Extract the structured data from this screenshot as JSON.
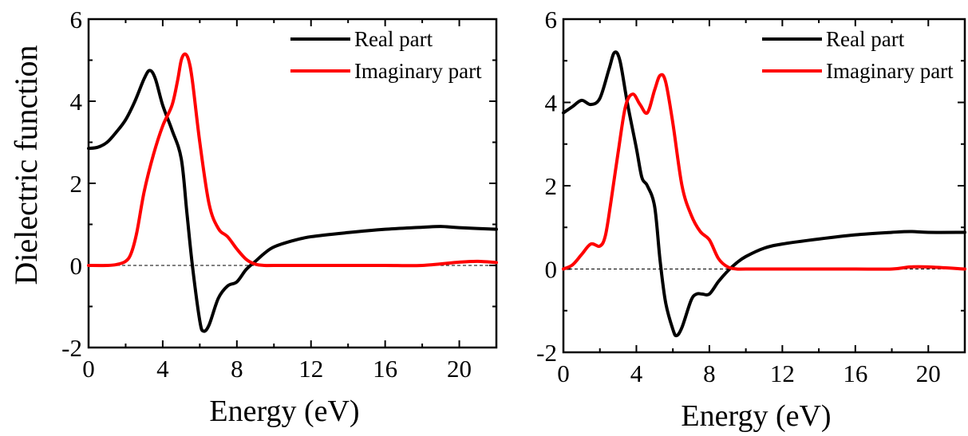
{
  "figure": {
    "ylabel": "Dielectric function"
  },
  "chart_data": [
    {
      "type": "line",
      "xlabel": "Energy (eV)",
      "ylabel": "Dielectric function",
      "xlim": [
        0,
        22
      ],
      "ylim": [
        -2,
        6
      ],
      "x_ticks": [
        0,
        4,
        8,
        12,
        16,
        20
      ],
      "y_ticks": [
        -2,
        0,
        2,
        4,
        6
      ],
      "legend_position": "top-right",
      "grid": false,
      "zero_line": true,
      "series": [
        {
          "name": "Real part",
          "color": "#000000",
          "x": [
            0,
            0.5,
            1,
            1.5,
            2,
            2.5,
            3,
            3.3,
            3.6,
            4,
            4.5,
            5,
            5.3,
            5.6,
            6,
            6.2,
            6.5,
            7,
            7.5,
            8,
            8.5,
            9,
            9.5,
            10,
            11,
            12,
            14,
            16,
            18,
            19,
            20,
            22
          ],
          "y": [
            2.85,
            2.88,
            3.0,
            3.25,
            3.55,
            4.0,
            4.55,
            4.75,
            4.55,
            3.9,
            3.3,
            2.6,
            1.3,
            0.0,
            -1.35,
            -1.6,
            -1.45,
            -0.8,
            -0.5,
            -0.4,
            -0.1,
            0.1,
            0.3,
            0.45,
            0.6,
            0.7,
            0.8,
            0.88,
            0.93,
            0.95,
            0.92,
            0.88
          ]
        },
        {
          "name": "Imaginary part",
          "color": "#ff0000",
          "x": [
            0,
            1,
            1.5,
            2,
            2.3,
            2.6,
            3,
            3.5,
            4,
            4.5,
            4.8,
            5.0,
            5.2,
            5.4,
            5.6,
            6,
            6.5,
            7,
            7.5,
            8,
            8.5,
            9,
            9.5,
            10,
            12,
            14,
            16,
            18,
            20,
            21,
            22
          ],
          "y": [
            0,
            0,
            0.02,
            0.1,
            0.3,
            0.8,
            1.8,
            2.7,
            3.4,
            3.9,
            4.5,
            5.0,
            5.15,
            5.0,
            4.5,
            3.0,
            1.5,
            0.9,
            0.7,
            0.4,
            0.15,
            0.03,
            0.0,
            0.0,
            0.0,
            0.0,
            0.0,
            0.0,
            0.08,
            0.1,
            0.07
          ]
        }
      ]
    },
    {
      "type": "line",
      "xlabel": "Energy (eV)",
      "ylabel": "",
      "xlim": [
        0,
        22
      ],
      "ylim": [
        -2,
        6
      ],
      "x_ticks": [
        0,
        4,
        8,
        12,
        16,
        20
      ],
      "y_ticks": [
        -2,
        0,
        2,
        4,
        6
      ],
      "legend_position": "top-right",
      "grid": false,
      "zero_line": true,
      "series": [
        {
          "name": "Real part",
          "color": "#000000",
          "x": [
            0,
            0.5,
            1,
            1.5,
            2,
            2.5,
            2.8,
            3.1,
            3.5,
            4,
            4.3,
            4.6,
            5,
            5.3,
            5.6,
            6,
            6.2,
            6.5,
            7,
            7.3,
            7.6,
            8,
            8.5,
            9,
            9.5,
            10,
            11,
            12,
            14,
            16,
            18,
            19,
            20,
            22
          ],
          "y": [
            3.75,
            3.9,
            4.05,
            3.95,
            4.1,
            4.8,
            5.2,
            5.0,
            4.0,
            2.9,
            2.2,
            2.0,
            1.5,
            0.2,
            -0.8,
            -1.45,
            -1.6,
            -1.4,
            -0.75,
            -0.6,
            -0.6,
            -0.6,
            -0.3,
            -0.05,
            0.15,
            0.3,
            0.5,
            0.6,
            0.72,
            0.82,
            0.88,
            0.9,
            0.88,
            0.88
          ]
        },
        {
          "name": "Imaginary part",
          "color": "#ff0000",
          "x": [
            0,
            0.5,
            1,
            1.5,
            2,
            2.3,
            2.6,
            3,
            3.4,
            3.8,
            4.2,
            4.6,
            5,
            5.3,
            5.6,
            6,
            6.5,
            7,
            7.5,
            8,
            8.5,
            9,
            9.5,
            10,
            12,
            14,
            16,
            18,
            19,
            20,
            22
          ],
          "y": [
            0.0,
            0.1,
            0.35,
            0.6,
            0.55,
            0.8,
            1.6,
            2.8,
            3.9,
            4.2,
            3.95,
            3.75,
            4.3,
            4.65,
            4.5,
            3.5,
            2.0,
            1.3,
            0.9,
            0.7,
            0.25,
            0.05,
            0.0,
            0.0,
            0.0,
            0.0,
            0.0,
            0.0,
            0.05,
            0.05,
            0.0
          ]
        }
      ]
    }
  ]
}
